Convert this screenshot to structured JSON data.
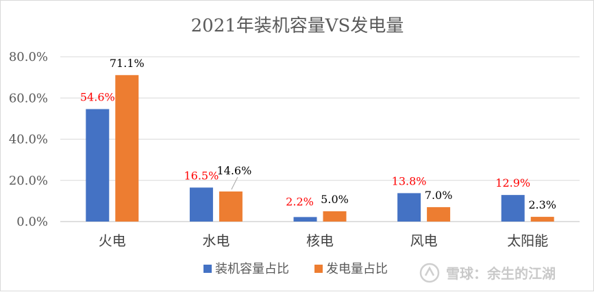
{
  "chart_data": {
    "type": "bar",
    "title": "2021年装机容量VS发电量",
    "categories": [
      "火电",
      "水电",
      "核电",
      "风电",
      "太阳能"
    ],
    "series": [
      {
        "name": "装机容量占比",
        "values": [
          54.6,
          16.5,
          2.2,
          13.8,
          12.9
        ],
        "labels": [
          "54.6%",
          "16.5%",
          "2.2%",
          "13.8%",
          "12.9%"
        ],
        "color": "#4472c4",
        "label_color": "#ff0000"
      },
      {
        "name": "发电量占比",
        "values": [
          71.1,
          14.6,
          5.0,
          7.0,
          2.3
        ],
        "labels": [
          "71.1%",
          "14.6%",
          "5.0%",
          "7.0%",
          "2.3%"
        ],
        "color": "#ed7d31",
        "label_color": "#000000"
      }
    ],
    "y_ticks": [
      "0.0%",
      "20.0%",
      "40.0%",
      "60.0%",
      "80.0%"
    ],
    "ylim": [
      0,
      80
    ],
    "grid": true,
    "legend_position": "bottom"
  },
  "watermark": {
    "text": "雪球：余生的江湖"
  },
  "colors": {
    "grid": "#d9d9d9",
    "axis": "#bfbfbf",
    "text": "#595959"
  }
}
